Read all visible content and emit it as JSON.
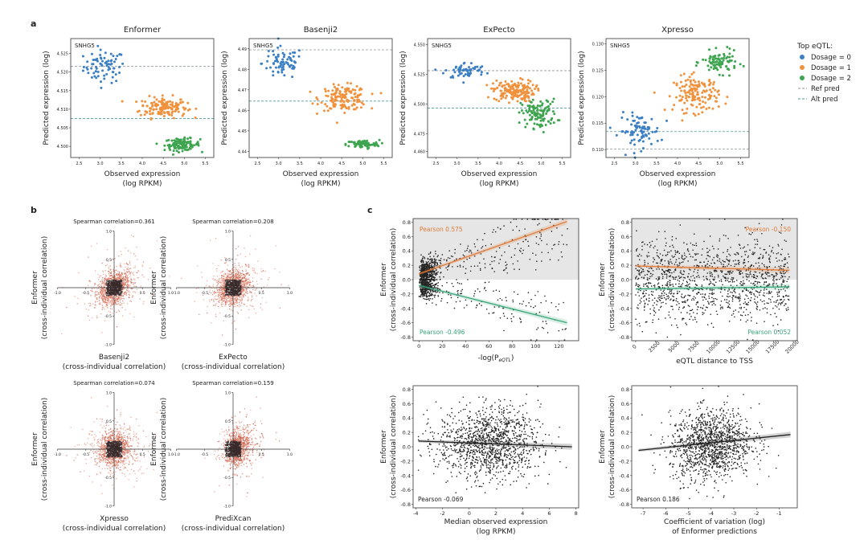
{
  "panel_labels": {
    "a": "a",
    "b": "b",
    "c": "c"
  },
  "legend": {
    "title": "Top eQTL:",
    "items": [
      {
        "label": "Dosage = 0",
        "color": "#3b7fc4",
        "kind": "dot"
      },
      {
        "label": "Dosage = 1",
        "color": "#f0923d",
        "kind": "dot"
      },
      {
        "label": "Dosage = 2",
        "color": "#3ea450",
        "kind": "dot"
      },
      {
        "label": "Ref pred",
        "color": "#8c96a0",
        "kind": "dash"
      },
      {
        "label": "Alt pred",
        "color": "#4e9a9a",
        "kind": "dash"
      }
    ]
  },
  "chart_data": [
    {
      "id": "a1",
      "type": "scatter",
      "title": "Enformer",
      "gene_label": "SNHG5",
      "xlabel": "Observed expression",
      "xlabel2": "(log RPKM)",
      "ylabel": "Predicted expression (log)",
      "xlim": [
        2.3,
        5.7
      ],
      "ylim": [
        4.497,
        4.529
      ],
      "xticks": [
        2.5,
        3.0,
        3.5,
        4.0,
        4.5,
        5.0,
        5.5
      ],
      "yticks": [
        4.5,
        4.505,
        4.51,
        4.515,
        4.52,
        4.525
      ],
      "ytick_labels": [
        "4.500",
        "4.505",
        "4.510",
        "4.515",
        "4.520",
        "4.525"
      ],
      "ref_line": 4.5215,
      "alt_line": 4.5075,
      "groups": [
        {
          "dosage": 0,
          "x_center": 3.1,
          "x_spread": 0.35,
          "y_center": 4.5215,
          "y_spread": 0.0022,
          "n": 75
        },
        {
          "dosage": 1,
          "x_center": 4.5,
          "x_spread": 0.4,
          "y_center": 4.5105,
          "y_spread": 0.0014,
          "n": 150
        },
        {
          "dosage": 2,
          "x_center": 4.95,
          "x_spread": 0.3,
          "y_center": 4.5005,
          "y_spread": 0.0008,
          "n": 110
        }
      ]
    },
    {
      "id": "a2",
      "type": "scatter",
      "title": "Basenji2",
      "gene_label": "SNHG5",
      "xlabel": "Observed expression",
      "xlabel2": "(log RPKM)",
      "ylabel": "Predicted expression (log)",
      "xlim": [
        2.3,
        5.7
      ],
      "ylim": [
        4.437,
        4.495
      ],
      "xticks": [
        2.5,
        3.0,
        3.5,
        4.0,
        4.5,
        5.0,
        5.5
      ],
      "yticks": [
        4.44,
        4.45,
        4.46,
        4.47,
        4.48,
        4.49
      ],
      "ytick_labels": [
        "4.44",
        "4.45",
        "4.46",
        "4.47",
        "4.48",
        "4.49"
      ],
      "ref_line": 4.4895,
      "alt_line": 4.4645,
      "groups": [
        {
          "dosage": 0,
          "x_center": 3.1,
          "x_spread": 0.35,
          "y_center": 4.483,
          "y_spread": 0.004,
          "n": 75
        },
        {
          "dosage": 1,
          "x_center": 4.55,
          "x_spread": 0.4,
          "y_center": 4.466,
          "y_spread": 0.003,
          "n": 150
        },
        {
          "dosage": 2,
          "x_center": 5.0,
          "x_spread": 0.28,
          "y_center": 4.4435,
          "y_spread": 0.001,
          "n": 80
        }
      ]
    },
    {
      "id": "a3",
      "type": "scatter",
      "title": "ExPecto",
      "gene_label": "SNHG5",
      "xlabel": "Observed expression",
      "xlabel2": "(log RPKM)",
      "ylabel": "Predicted expression (log)",
      "xlim": [
        2.3,
        5.7
      ],
      "ylim": [
        4.455,
        4.555
      ],
      "xticks": [
        2.5,
        3.0,
        3.5,
        4.0,
        4.5,
        5.0,
        5.5
      ],
      "yticks": [
        4.46,
        4.475,
        4.5,
        4.525,
        4.55
      ],
      "ytick_labels": [
        "4.460",
        "4.475",
        "4.500",
        "4.525",
        "4.550"
      ],
      "ref_line": 4.528,
      "alt_line": 4.4965,
      "groups": [
        {
          "dosage": 0,
          "x_center": 3.2,
          "x_spread": 0.35,
          "y_center": 4.528,
          "y_spread": 0.0035,
          "n": 60
        },
        {
          "dosage": 1,
          "x_center": 4.35,
          "x_spread": 0.35,
          "y_center": 4.511,
          "y_spread": 0.0045,
          "n": 160
        },
        {
          "dosage": 2,
          "x_center": 4.95,
          "x_spread": 0.3,
          "y_center": 4.492,
          "y_spread": 0.006,
          "n": 110
        }
      ]
    },
    {
      "id": "a4",
      "type": "scatter",
      "title": "Xpresso",
      "gene_label": "SNHG5",
      "xlabel": "Observed expression",
      "xlabel2": "(log RPKM)",
      "ylabel": "Predicted expression (log)",
      "xlim": [
        2.3,
        5.7
      ],
      "ylim": [
        0.1085,
        0.131
      ],
      "xticks": [
        2.5,
        3.0,
        3.5,
        4.0,
        4.5,
        5.0,
        5.5
      ],
      "yticks": [
        0.11,
        0.115,
        0.12,
        0.125,
        0.13
      ],
      "ytick_labels": [
        "0.110",
        "0.115",
        "0.120",
        "0.125",
        "0.130"
      ],
      "ref_line": 0.1101,
      "alt_line": 0.1134,
      "groups": [
        {
          "dosage": 0,
          "x_center": 3.1,
          "x_spread": 0.35,
          "y_center": 0.1135,
          "y_spread": 0.0016,
          "n": 85
        },
        {
          "dosage": 1,
          "x_center": 4.45,
          "x_spread": 0.38,
          "y_center": 0.1205,
          "y_spread": 0.0017,
          "n": 150
        },
        {
          "dosage": 2,
          "x_center": 5.0,
          "x_spread": 0.3,
          "y_center": 0.1265,
          "y_spread": 0.001,
          "n": 90
        }
      ]
    },
    {
      "id": "b1",
      "type": "scatter",
      "title": "Spearman correlation=0.361",
      "xlabel": "Basenji2",
      "xlabel2": "(cross-individual correlation)",
      "ylabel": "Enformer",
      "ylabel2": "(cross-individual correlation)",
      "xlim": [
        -1.05,
        1.05
      ],
      "ylim": [
        -1.05,
        1.05
      ],
      "ticks": [
        -1.0,
        -0.5,
        0.5,
        1.0
      ],
      "tick_labels": [
        "-1.0",
        "-0.5",
        "0.5",
        "1.0"
      ],
      "correlation": 0.361,
      "n_points": 1400
    },
    {
      "id": "b2",
      "type": "scatter",
      "title": "Spearman correlation=0.208",
      "xlabel": "ExPecto",
      "xlabel2": "(cross-individual correlation)",
      "ylabel": "Enformer",
      "ylabel2": "(cross-individual correlation)",
      "xlim": [
        -1.05,
        1.05
      ],
      "ylim": [
        -1.05,
        1.05
      ],
      "ticks": [
        -1.0,
        -0.5,
        0.5,
        1.0
      ],
      "tick_labels": [
        "-1.0",
        "-0.5",
        "0.5",
        "1.0"
      ],
      "correlation": 0.208,
      "n_points": 1400
    },
    {
      "id": "b3",
      "type": "scatter",
      "title": "Spearman correlation=0.074",
      "xlabel": "Xpresso",
      "xlabel2": "(cross-individual correlation)",
      "ylabel": "Enformer",
      "ylabel2": "(cross-individual correlation)",
      "xlim": [
        -1.05,
        1.05
      ],
      "ylim": [
        -1.05,
        1.05
      ],
      "ticks": [
        -1.0,
        -0.5,
        0.5,
        1.0
      ],
      "tick_labels": [
        "-1.0",
        "-0.5",
        "0.5",
        "1.0"
      ],
      "correlation": 0.074,
      "n_points": 1400
    },
    {
      "id": "b4",
      "type": "scatter",
      "title": "Spearman correlation=0.159",
      "xlabel": "PrediXcan",
      "xlabel2": "(cross-individual correlation)",
      "ylabel": "Enformer",
      "ylabel2": "(cross-individual correlation)",
      "xlim": [
        -1.05,
        1.05
      ],
      "ylim": [
        -1.05,
        1.05
      ],
      "ticks": [
        -1.0,
        -0.5,
        0.5,
        1.0
      ],
      "tick_labels": [
        "-1.0",
        "-0.5",
        "0.5",
        "1.0"
      ],
      "correlation": 0.159,
      "n_points": 1400
    },
    {
      "id": "c1",
      "type": "scatter",
      "xlabel": "-log(P",
      "xlabel_sub": "eQTL",
      "xlabel_end": ")",
      "ylabel": "Enformer",
      "ylabel2": "(cross-individual correlation)",
      "xlim": [
        -5,
        137
      ],
      "ylim": [
        -0.85,
        0.85
      ],
      "xticks": [
        0,
        20,
        40,
        60,
        80,
        100,
        120
      ],
      "yticks": [
        -0.8,
        -0.6,
        -0.4,
        -0.2,
        0.0,
        0.2,
        0.4,
        0.6,
        0.8
      ],
      "shade_upper": true,
      "fits": [
        {
          "label": "Pearson 0.575",
          "x0": 0,
          "y0": 0.08,
          "x1": 127,
          "y1": 0.81,
          "color": "#e07b39"
        },
        {
          "label": "Pearson -0.496",
          "x0": 0,
          "y0": -0.08,
          "x1": 127,
          "y1": -0.6,
          "color": "#3aa57a"
        }
      ]
    },
    {
      "id": "c2",
      "type": "scatter",
      "xlabel": "eQTL distance to TSS",
      "ylabel": "Enformer",
      "ylabel2": "(cross-individual correlation)",
      "xlim": [
        -500,
        20500
      ],
      "ylim": [
        -0.85,
        0.85
      ],
      "xticks": [
        0,
        2500,
        5000,
        7500,
        10000,
        12500,
        15000,
        17500,
        20000
      ],
      "yticks": [
        -0.8,
        -0.6,
        -0.4,
        -0.2,
        0.0,
        0.2,
        0.4,
        0.6,
        0.8
      ],
      "shade_upper": true,
      "fits": [
        {
          "label": "Pearson -0.150",
          "x0": 0,
          "y0": 0.19,
          "x1": 19500,
          "y1": 0.13,
          "color": "#e07b39"
        },
        {
          "label": "Pearson 0.052",
          "x0": 0,
          "y0": -0.13,
          "x1": 19500,
          "y1": -0.1,
          "color": "#3aa57a"
        }
      ]
    },
    {
      "id": "c3",
      "type": "scatter",
      "xlabel": "Median observed expression",
      "xlabel2": "(log RPKM)",
      "ylabel": "Enformer",
      "ylabel2": "(cross-individual correlation)",
      "xlim": [
        -4.2,
        8.2
      ],
      "ylim": [
        -0.85,
        0.85
      ],
      "xticks": [
        -4,
        -2,
        0,
        2,
        4,
        6,
        8
      ],
      "yticks": [
        -0.8,
        -0.6,
        -0.4,
        -0.2,
        0.0,
        0.2,
        0.4,
        0.6,
        0.8
      ],
      "shade_upper": false,
      "fits": [
        {
          "label": "Pearson -0.069",
          "x0": -3.8,
          "y0": 0.08,
          "x1": 7.7,
          "y1": 0.0,
          "color": "#222222"
        }
      ]
    },
    {
      "id": "c4",
      "type": "scatter",
      "xlabel": "Coefficient of variation (log)",
      "xlabel2": "of Enformer predictions",
      "ylabel": "Enformer",
      "ylabel2": "(cross-individual correlation)",
      "xlim": [
        -7.5,
        -0.2
      ],
      "ylim": [
        -0.85,
        0.85
      ],
      "xticks": [
        -7,
        -6,
        -5,
        -4,
        -3,
        -2,
        -1
      ],
      "yticks": [
        -0.8,
        -0.6,
        -0.4,
        -0.2,
        0.0,
        0.2,
        0.4,
        0.6,
        0.8
      ],
      "shade_upper": false,
      "fits": [
        {
          "label": "Pearson 0.186",
          "x0": -7.2,
          "y0": -0.05,
          "x1": -0.5,
          "y1": 0.17,
          "color": "#222222"
        }
      ]
    }
  ]
}
